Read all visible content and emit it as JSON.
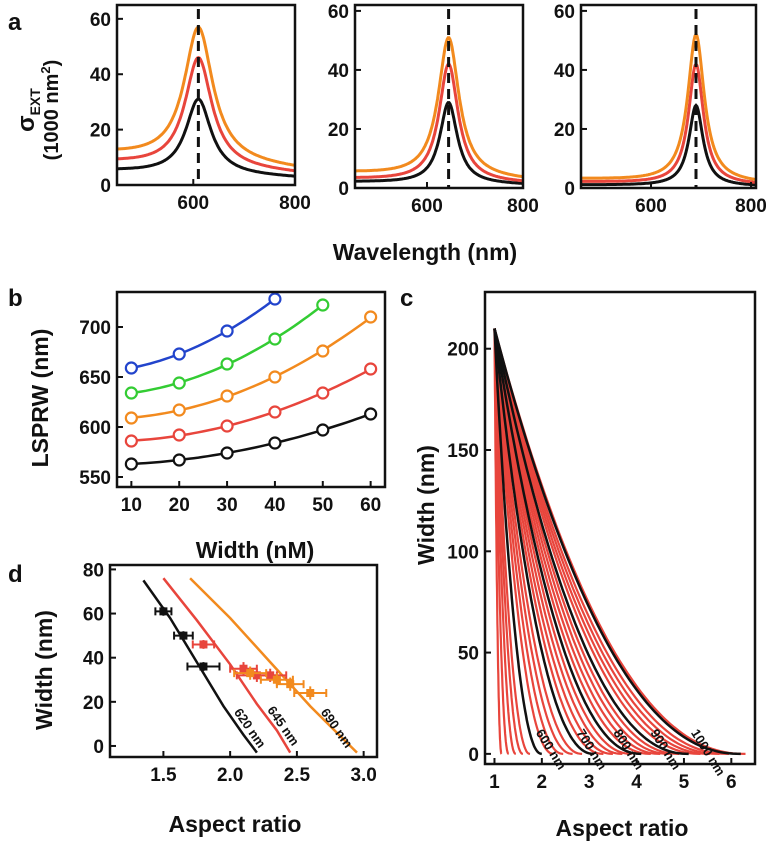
{
  "figure": {
    "panel_labels": [
      "a",
      "b",
      "c",
      "d"
    ]
  },
  "colors": {
    "black": "#111111",
    "red": "#e8453c",
    "orange": "#f28a1e",
    "green": "#33cc33",
    "blue": "#2244cc"
  },
  "chart_data": [
    {
      "id": "a1",
      "type": "line",
      "xlabel": "",
      "ylabel": "σEXT (1000 nm²)",
      "ylabel_main": "σ",
      "ylabel_sub": "EXT",
      "ylabel_units": "(1000 nm",
      "ylabel_sup": "2",
      "ylabel_close": ")",
      "xlim": [
        450,
        800
      ],
      "ylim": [
        0,
        65
      ],
      "xticks": [
        600,
        800
      ],
      "yticks": [
        0,
        20,
        40,
        60
      ],
      "dashed_line_x": 610,
      "series": [
        {
          "color": "#111111",
          "peak_x": 610,
          "peak_y": 31,
          "width": 30,
          "baseline": 5
        },
        {
          "color": "#e8453c",
          "peak_x": 610,
          "peak_y": 46,
          "width": 32,
          "baseline": 8
        },
        {
          "color": "#f28a1e",
          "peak_x": 610,
          "peak_y": 57,
          "width": 34,
          "baseline": 11
        }
      ]
    },
    {
      "id": "a2",
      "type": "line",
      "xlabel": "",
      "ylabel": "",
      "xlim": [
        450,
        800
      ],
      "ylim": [
        0,
        62
      ],
      "xticks": [
        600,
        800
      ],
      "yticks": [
        0,
        20,
        40,
        60
      ],
      "dashed_line_x": 645,
      "series": [
        {
          "color": "#111111",
          "peak_x": 645,
          "peak_y": 29,
          "width": 22,
          "baseline": 2
        },
        {
          "color": "#e8453c",
          "peak_x": 645,
          "peak_y": 42,
          "width": 24,
          "baseline": 3
        },
        {
          "color": "#f28a1e",
          "peak_x": 645,
          "peak_y": 51,
          "width": 26,
          "baseline": 5
        }
      ]
    },
    {
      "id": "a3",
      "type": "line",
      "xlabel": "",
      "ylabel": "",
      "xlim": [
        460,
        810
      ],
      "ylim": [
        0,
        62
      ],
      "xticks": [
        600,
        800
      ],
      "yticks": [
        0,
        20,
        40,
        60
      ],
      "dashed_line_x": 690,
      "series": [
        {
          "color": "#111111",
          "peak_x": 690,
          "peak_y": 28,
          "width": 17,
          "baseline": 1
        },
        {
          "color": "#e8453c",
          "peak_x": 690,
          "peak_y": 42,
          "width": 18,
          "baseline": 2
        },
        {
          "color": "#f28a1e",
          "peak_x": 690,
          "peak_y": 52,
          "width": 20,
          "baseline": 3
        }
      ]
    },
    {
      "id": "a_shared",
      "shared_xlabel": "Wavelength (nm)"
    },
    {
      "id": "b",
      "type": "scatter",
      "xlabel": "Width (nM)",
      "ylabel": "LSPRW (nm)",
      "xlim": [
        7,
        63
      ],
      "ylim": [
        540,
        735
      ],
      "xticks": [
        10,
        20,
        30,
        40,
        50,
        60
      ],
      "yticks": [
        550,
        600,
        650,
        700
      ],
      "series": [
        {
          "color": "#111111",
          "x": [
            10,
            20,
            30,
            40,
            50,
            60
          ],
          "y": [
            563,
            567,
            574,
            584,
            597,
            613
          ]
        },
        {
          "color": "#e8453c",
          "x": [
            10,
            20,
            30,
            40,
            50,
            60
          ],
          "y": [
            586,
            592,
            601,
            615,
            634,
            658
          ]
        },
        {
          "color": "#f28a1e",
          "x": [
            10,
            20,
            30,
            40,
            50,
            60
          ],
          "y": [
            609,
            617,
            631,
            650,
            676,
            710
          ]
        },
        {
          "color": "#33cc33",
          "x": [
            10,
            20,
            30,
            40,
            50
          ],
          "y": [
            634,
            644,
            663,
            688,
            722
          ]
        },
        {
          "color": "#2244cc",
          "x": [
            10,
            20,
            30,
            40
          ],
          "y": [
            659,
            673,
            696,
            728
          ]
        }
      ]
    },
    {
      "id": "c",
      "type": "line",
      "xlabel": "Aspect ratio",
      "ylabel": "Width (nm)",
      "xlim": [
        0.8,
        6.5
      ],
      "ylim": [
        -5,
        228
      ],
      "xticks": [
        1,
        2,
        3,
        4,
        5,
        6
      ],
      "yticks": [
        0,
        50,
        100,
        150,
        200
      ],
      "black_curves": [
        {
          "label": "600 nm",
          "lambda": 600,
          "end_ar": 2.0
        },
        {
          "label": "700 nm",
          "lambda": 700,
          "end_ar": 3.1
        },
        {
          "label": "800 nm",
          "lambda": 800,
          "end_ar": 4.1
        },
        {
          "label": "900 nm",
          "lambda": 900,
          "end_ar": 5.1
        },
        {
          "label": "1000 nm",
          "lambda": 1000,
          "end_ar": 6.2
        }
      ],
      "red_curves_end_ar": [
        1.15,
        1.3,
        1.45,
        1.6,
        1.75,
        2.25,
        2.45,
        2.65,
        2.85,
        3.3,
        3.5,
        3.7,
        3.9,
        4.3,
        4.5,
        4.7,
        4.9,
        5.35,
        5.55,
        5.75,
        5.95,
        6.3
      ]
    },
    {
      "id": "d",
      "type": "scatter",
      "xlabel": "Aspect ratio",
      "ylabel": "Width (nm)",
      "xlim": [
        1.1,
        3.1
      ],
      "ylim": [
        -5,
        82
      ],
      "xticks": [
        1.5,
        2.0,
        2.5,
        3.0
      ],
      "xtick_labels": [
        "1.5",
        "2.0",
        "2.5",
        "3.0"
      ],
      "yticks": [
        0,
        20,
        40,
        60,
        80
      ],
      "curves": [
        {
          "label": "620 nm",
          "color": "#111111",
          "x": [
            1.35,
            1.55,
            1.75,
            1.95,
            2.1,
            2.2
          ],
          "y": [
            75,
            58,
            38,
            18,
            5,
            -3
          ]
        },
        {
          "label": "645 nm",
          "color": "#e8453c",
          "x": [
            1.5,
            1.75,
            2.0,
            2.2,
            2.35,
            2.45
          ],
          "y": [
            76,
            57,
            37,
            19,
            7,
            -3
          ]
        },
        {
          "label": "690 nm",
          "color": "#f28a1e",
          "x": [
            1.7,
            2.0,
            2.3,
            2.6,
            2.8,
            2.95
          ],
          "y": [
            76,
            58,
            38,
            18,
            6,
            -3
          ]
        }
      ],
      "points": [
        {
          "color": "#111111",
          "x": 1.5,
          "y": 61,
          "xerr": 0.06,
          "yerr": 2
        },
        {
          "color": "#111111",
          "x": 1.65,
          "y": 50,
          "xerr": 0.07,
          "yerr": 2
        },
        {
          "color": "#111111",
          "x": 1.8,
          "y": 36,
          "xerr": 0.12,
          "yerr": 2
        },
        {
          "color": "#e8453c",
          "x": 1.8,
          "y": 46,
          "xerr": 0.08,
          "yerr": 2
        },
        {
          "color": "#e8453c",
          "x": 2.1,
          "y": 35,
          "xerr": 0.1,
          "yerr": 3
        },
        {
          "color": "#e8453c",
          "x": 2.2,
          "y": 32,
          "xerr": 0.15,
          "yerr": 3
        },
        {
          "color": "#e8453c",
          "x": 2.3,
          "y": 32,
          "xerr": 0.12,
          "yerr": 3
        },
        {
          "color": "#f28a1e",
          "x": 2.15,
          "y": 33,
          "xerr": 0.12,
          "yerr": 3
        },
        {
          "color": "#f28a1e",
          "x": 2.35,
          "y": 30,
          "xerr": 0.12,
          "yerr": 3
        },
        {
          "color": "#f28a1e",
          "x": 2.45,
          "y": 28,
          "xerr": 0.1,
          "yerr": 3
        },
        {
          "color": "#f28a1e",
          "x": 2.6,
          "y": 24,
          "xerr": 0.12,
          "yerr": 3
        }
      ]
    }
  ]
}
